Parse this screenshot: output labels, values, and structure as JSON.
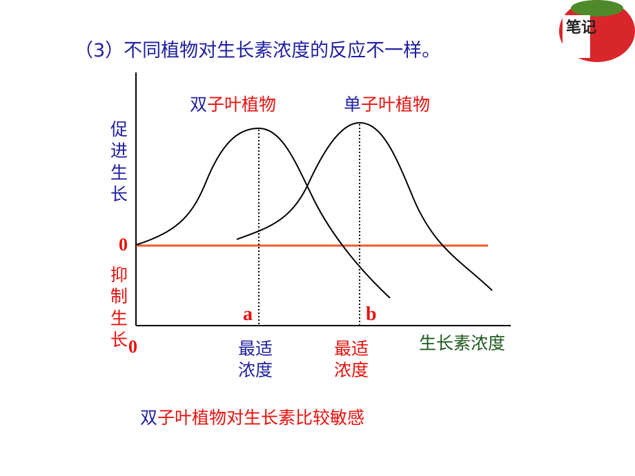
{
  "title": "（3）不同植物对生长素浓度的反应不一样。",
  "badge": "笔记",
  "curves": {
    "dicot": {
      "label": [
        "双",
        "子叶植物"
      ]
    },
    "monocot": {
      "label": [
        "单",
        "子叶植物"
      ]
    }
  },
  "y_axis": {
    "upper": "促进生长",
    "zero": "0",
    "lower": "抑制生长",
    "origin": "0"
  },
  "x_axis": {
    "label": "生长素浓度"
  },
  "points": [
    {
      "name": "a",
      "label": "最适浓度"
    },
    {
      "name": "b",
      "label": "最适浓度"
    }
  ],
  "conclusion": [
    "双",
    "子叶植物对生长素比较敏感"
  ]
}
